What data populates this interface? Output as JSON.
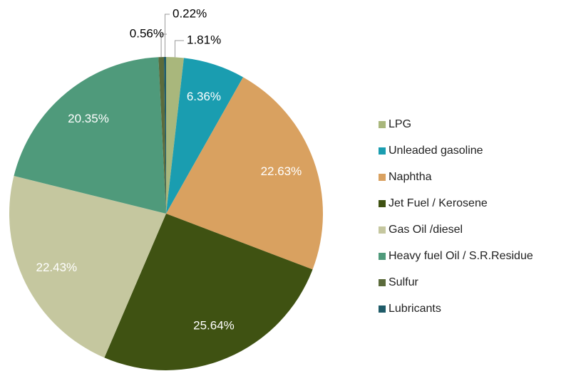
{
  "chart_data": {
    "type": "pie",
    "categories": [
      "LPG",
      "Unleaded gasoline",
      "Naphtha",
      "Jet Fuel / Kerosene",
      "Gas Oil /diesel",
      "Heavy fuel Oil / S.R.Residue",
      "Sulfur",
      "Lubricants"
    ],
    "values": [
      1.81,
      6.36,
      22.63,
      25.64,
      22.43,
      20.35,
      0.56,
      0.22
    ],
    "value_labels": [
      "1.81%",
      "6.36%",
      "22.63%",
      "25.64%",
      "22.43%",
      "20.35%",
      "0.56%",
      "0.22%"
    ],
    "colors": [
      "#a9b77c",
      "#1a9db0",
      "#d9a160",
      "#3f5212",
      "#c5c79f",
      "#4f9a7b",
      "#5b6b3c",
      "#1f5b68"
    ],
    "legend": "right"
  }
}
